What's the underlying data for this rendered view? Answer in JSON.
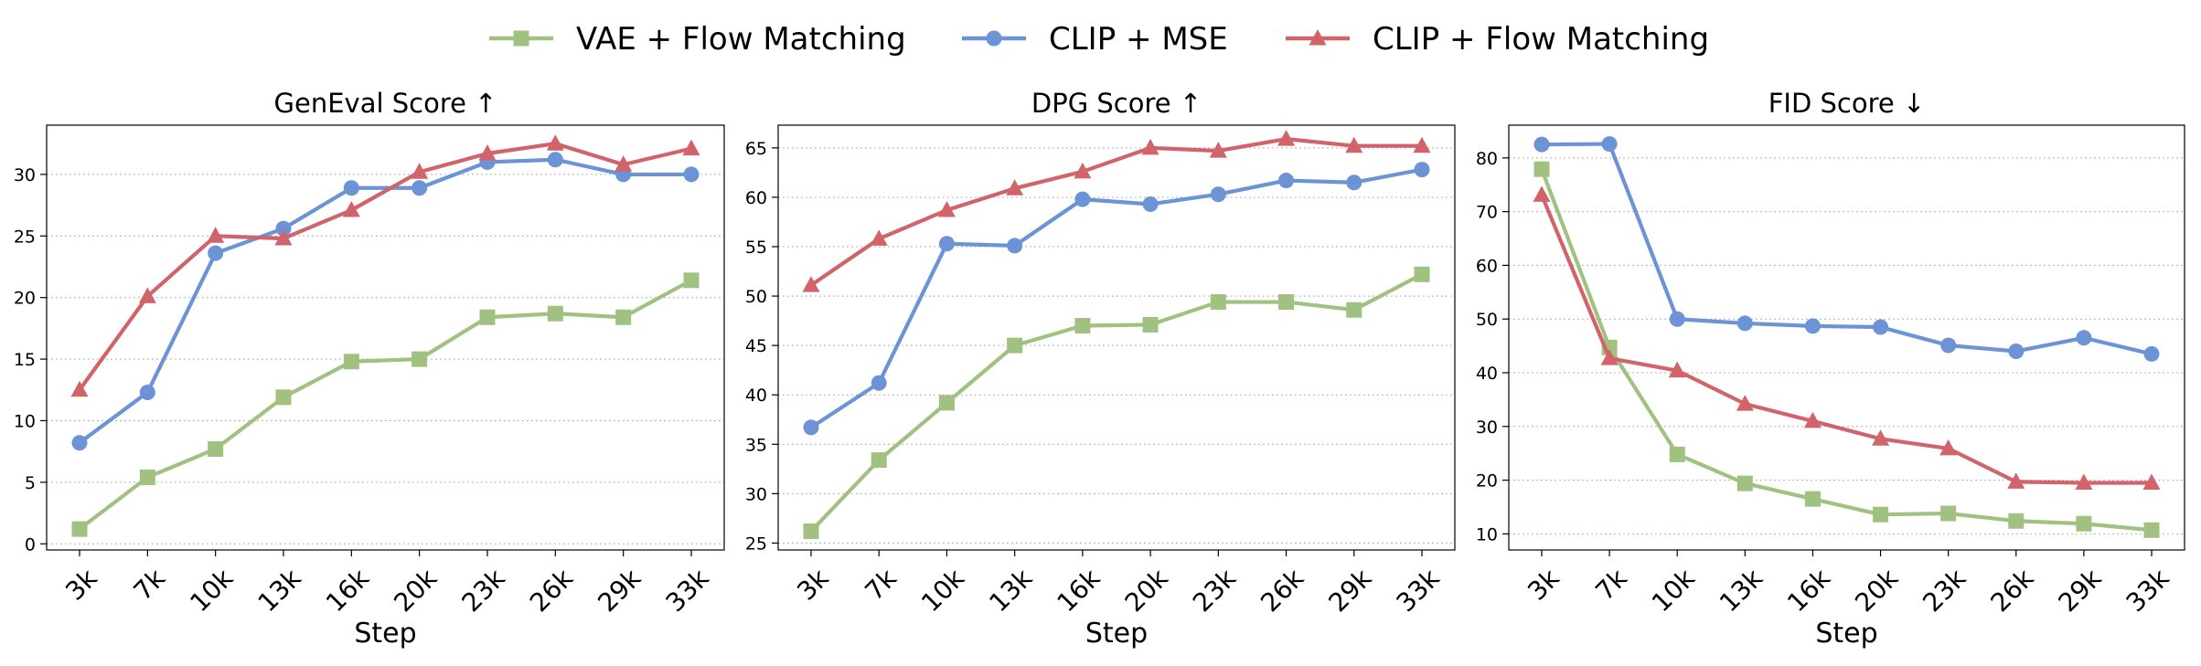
{
  "legend": {
    "placement": "top-center",
    "entries": [
      {
        "label": "VAE + Flow Matching",
        "color": "#a1c181",
        "marker": "square"
      },
      {
        "label": "CLIP + MSE",
        "color": "#6b93d6",
        "marker": "circle"
      },
      {
        "label": "CLIP + Flow Matching",
        "color": "#d0646a",
        "marker": "triangle"
      }
    ]
  },
  "chart_data": [
    {
      "type": "line",
      "title": "GenEval Score ↑",
      "xlabel": "Step",
      "ylabel": "",
      "categories": [
        "3k",
        "7k",
        "10k",
        "13k",
        "16k",
        "20k",
        "23k",
        "26k",
        "29k",
        "33k"
      ],
      "ylim": [
        -0.5,
        34
      ],
      "yticks": [
        0,
        5,
        10,
        15,
        20,
        25,
        30
      ],
      "grid": "horizontal dotted",
      "series": [
        {
          "name": "VAE + Flow Matching",
          "values": [
            1.2,
            5.4,
            7.7,
            11.9,
            14.8,
            15.0,
            18.4,
            18.7,
            18.4,
            21.4
          ]
        },
        {
          "name": "CLIP + MSE",
          "values": [
            8.2,
            12.3,
            23.6,
            25.6,
            28.9,
            28.9,
            31.0,
            31.2,
            30.0,
            30.0
          ]
        },
        {
          "name": "CLIP + Flow Matching",
          "values": [
            12.5,
            20.1,
            25.0,
            24.8,
            27.1,
            30.2,
            31.7,
            32.5,
            30.8,
            32.1
          ]
        }
      ]
    },
    {
      "type": "line",
      "title": "DPG Score ↑",
      "xlabel": "Step",
      "ylabel": "",
      "categories": [
        "3k",
        "7k",
        "10k",
        "13k",
        "16k",
        "20k",
        "23k",
        "26k",
        "29k",
        "33k"
      ],
      "ylim": [
        24.3,
        67.3
      ],
      "yticks": [
        25,
        30,
        35,
        40,
        45,
        50,
        55,
        60,
        65
      ],
      "grid": "horizontal dotted",
      "series": [
        {
          "name": "VAE + Flow Matching",
          "values": [
            26.2,
            33.4,
            39.2,
            45.0,
            47.0,
            47.1,
            49.4,
            49.4,
            48.6,
            52.2
          ]
        },
        {
          "name": "CLIP + MSE",
          "values": [
            36.7,
            41.2,
            55.3,
            55.1,
            59.8,
            59.3,
            60.3,
            61.7,
            61.5,
            62.8
          ]
        },
        {
          "name": "CLIP + Flow Matching",
          "values": [
            51.1,
            55.8,
            58.7,
            60.9,
            62.6,
            65.0,
            64.7,
            65.9,
            65.2,
            65.2
          ]
        }
      ]
    },
    {
      "type": "line",
      "title": "FID Score ↓",
      "xlabel": "Step",
      "ylabel": "",
      "categories": [
        "3k",
        "7k",
        "10k",
        "13k",
        "16k",
        "20k",
        "23k",
        "26k",
        "29k",
        "33k"
      ],
      "ylim": [
        7.0,
        86.1
      ],
      "yticks": [
        10,
        20,
        30,
        40,
        50,
        60,
        70,
        80
      ],
      "grid": "horizontal dotted",
      "series": [
        {
          "name": "VAE + Flow Matching",
          "values": [
            77.9,
            44.7,
            24.8,
            19.4,
            16.5,
            13.6,
            13.8,
            12.4,
            11.9,
            10.7
          ]
        },
        {
          "name": "CLIP + MSE",
          "values": [
            82.5,
            82.6,
            50.0,
            49.2,
            48.7,
            48.5,
            45.1,
            44.0,
            46.5,
            43.5
          ]
        },
        {
          "name": "CLIP + Flow Matching",
          "values": [
            73.1,
            42.7,
            40.4,
            34.2,
            31.0,
            27.7,
            25.9,
            19.7,
            19.5,
            19.5
          ]
        }
      ]
    }
  ]
}
